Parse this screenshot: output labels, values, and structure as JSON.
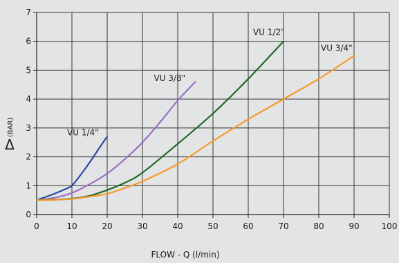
{
  "chart_data": {
    "type": "line",
    "title": "",
    "xlabel": "FLOW - Q (l/min)",
    "ylabel_symbol": "Δ",
    "ylabel_unit": "(BAR)",
    "xlim": [
      0,
      100
    ],
    "ylim": [
      0,
      7
    ],
    "x_ticks": [
      "0",
      "10",
      "20",
      "30",
      "40",
      "50",
      "60",
      "70",
      "80",
      "90",
      "100"
    ],
    "y_ticks": [
      "0",
      "1",
      "2",
      "3",
      "4",
      "5",
      "6",
      "7"
    ],
    "grid": true,
    "series": [
      {
        "name": "VU 1/4\"",
        "color": "#2a4ba0",
        "x": [
          0,
          5,
          9,
          10,
          12,
          15,
          18,
          20
        ],
        "y": [
          0.5,
          0.72,
          0.93,
          1.0,
          1.3,
          1.8,
          2.35,
          2.7
        ]
      },
      {
        "name": "VU 3/8\"",
        "color": "#9b6fc3",
        "x": [
          0,
          5,
          10,
          15,
          20,
          25,
          30,
          35,
          40,
          45
        ],
        "y": [
          0.5,
          0.58,
          0.75,
          1.05,
          1.42,
          1.92,
          2.5,
          3.2,
          3.95,
          4.6
        ]
      },
      {
        "name": "VU 1/2\"",
        "color": "#1d6a2a",
        "x": [
          0,
          5,
          10,
          15,
          20,
          25,
          30,
          40,
          50,
          60,
          70
        ],
        "y": [
          0.5,
          0.52,
          0.55,
          0.65,
          0.85,
          1.1,
          1.45,
          2.45,
          3.5,
          4.7,
          6.0
        ]
      },
      {
        "name": "VU 3/4\"",
        "color": "#f39b2a",
        "x": [
          0,
          5,
          10,
          15,
          20,
          25,
          30,
          40,
          50,
          60,
          70,
          80,
          90
        ],
        "y": [
          0.5,
          0.51,
          0.54,
          0.62,
          0.72,
          0.92,
          1.15,
          1.75,
          2.55,
          3.3,
          4.0,
          4.7,
          5.5
        ]
      }
    ]
  }
}
